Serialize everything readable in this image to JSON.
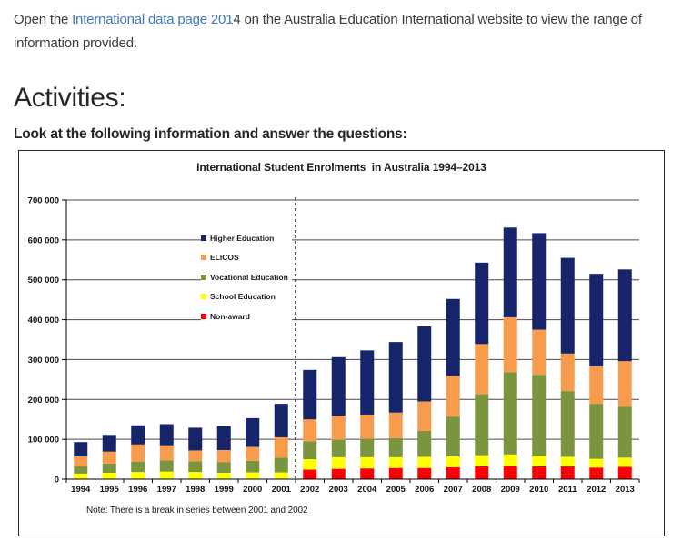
{
  "page": {
    "intro": {
      "pre": "Open the ",
      "link_text": "International data page 201",
      "post": "4 on the Australia Education International website to view the range of information provided."
    },
    "heading": "Activities:",
    "instruction": "Look at the following information and answer the questions:"
  },
  "colors": {
    "link": "#3e7ab8",
    "grid": "#4a4a4a",
    "axis": "#000000",
    "break_line": "#1a1a1a"
  },
  "chart_data": {
    "type": "bar",
    "stacked": true,
    "title": "International Student Enrolments  in Australia 1994–2013",
    "note": "Note: There is a break in series between 2001 and 2002",
    "grid": true,
    "legend_position": "upper-left-inside",
    "xlabel": "",
    "ylabel": "",
    "ylim": [
      0,
      700000
    ],
    "ytick_step": 100000,
    "ytick_labels": [
      "0",
      "100 000",
      "200 000",
      "300 000",
      "400 000",
      "500 000",
      "600 000",
      "700 000"
    ],
    "break_between": [
      "2001",
      "2002"
    ],
    "categories": [
      "1994",
      "1995",
      "1996",
      "1997",
      "1998",
      "1999",
      "2000",
      "2001",
      "2002",
      "2003",
      "2004",
      "2005",
      "2006",
      "2007",
      "2008",
      "2009",
      "2010",
      "2011",
      "2012",
      "2013"
    ],
    "series": [
      {
        "name": "Higher Education",
        "color": "#16246a",
        "values": [
          36000,
          42000,
          48000,
          53000,
          57000,
          60000,
          72000,
          84000,
          124000,
          147000,
          161000,
          177000,
          188000,
          193000,
          204000,
          225000,
          242000,
          240000,
          232000,
          230000
        ]
      },
      {
        "name": "ELICOS",
        "color": "#f79b4c",
        "values": [
          25000,
          30000,
          43000,
          38000,
          27000,
          30000,
          35000,
          51000,
          55000,
          60000,
          61000,
          64000,
          74000,
          102000,
          126000,
          138000,
          114000,
          94000,
          94000,
          114000
        ]
      },
      {
        "name": "Vocational Education",
        "color": "#7a9440",
        "values": [
          18000,
          23000,
          26000,
          28000,
          27000,
          27000,
          29000,
          37000,
          45000,
          44000,
          46000,
          48000,
          65000,
          100000,
          153000,
          206000,
          202000,
          165000,
          138000,
          128000
        ]
      },
      {
        "name": "School Education",
        "color": "#ffff00",
        "values": [
          14000,
          16000,
          18000,
          19000,
          18000,
          16000,
          17000,
          17000,
          26000,
          29000,
          28000,
          27000,
          28000,
          27000,
          28000,
          29000,
          27000,
          24000,
          22000,
          23000
        ]
      },
      {
        "name": "Non-award",
        "color": "#ff0000",
        "values": [
          0,
          0,
          0,
          0,
          0,
          0,
          0,
          0,
          24000,
          26000,
          27000,
          28000,
          28000,
          30000,
          32000,
          33000,
          32000,
          32000,
          29000,
          31000
        ]
      }
    ],
    "stack_order_bottom_to_top": [
      "Non-award",
      "School Education",
      "Vocational Education",
      "ELICOS",
      "Higher Education"
    ]
  }
}
